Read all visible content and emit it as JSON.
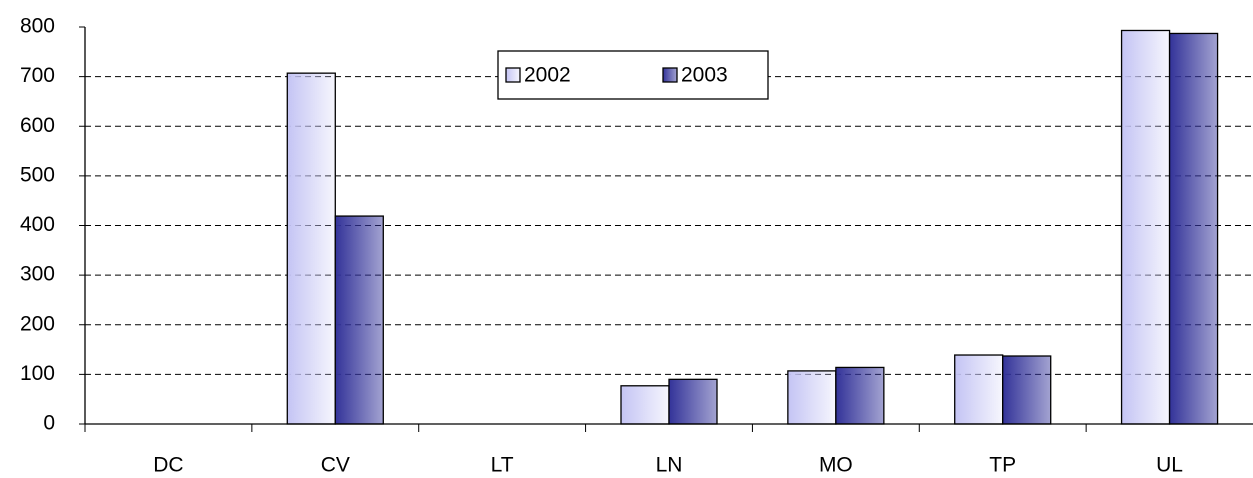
{
  "chart_data": {
    "type": "bar",
    "categories": [
      "DC",
      "CV",
      "LT",
      "LN",
      "MO",
      "TP",
      "UL"
    ],
    "series": [
      {
        "name": "2002",
        "color": "#c4c4f4",
        "values": [
          0,
          707,
          0,
          77,
          107,
          139,
          793
        ]
      },
      {
        "name": "2003",
        "color": "#333399",
        "values": [
          0,
          419,
          0,
          90,
          114,
          137,
          787
        ]
      }
    ],
    "ylim": [
      0,
      800
    ],
    "yticks": [
      0,
      100,
      200,
      300,
      400,
      500,
      600,
      700,
      800
    ],
    "grid": true,
    "legend": "top-center"
  }
}
